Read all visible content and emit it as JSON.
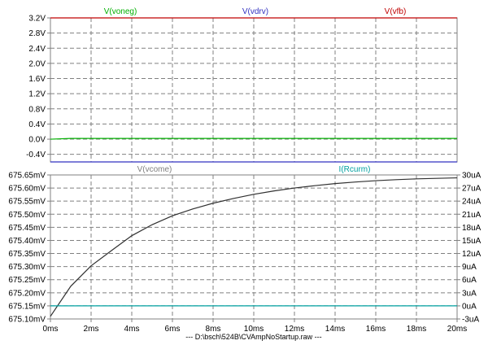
{
  "window": {
    "footer": "---  D:\\bsch\\524B\\CVAmpNoStartup.raw  ---"
  },
  "colors": {
    "vfb": "#c00000",
    "vdrv": "#3030c0",
    "voneg": "#00b000",
    "vcome": "#303030",
    "rcurm": "#00a0a0",
    "grid": "#808080",
    "plot_bg": "#ffffff"
  },
  "chart_data": [
    {
      "type": "line",
      "pane": "top",
      "xlim": [
        0,
        20
      ],
      "x_ticks": [
        "0ms",
        "2ms",
        "4ms",
        "6ms",
        "8ms",
        "10ms",
        "12ms",
        "14ms",
        "16ms",
        "18ms",
        "20ms"
      ],
      "ylim": [
        -0.6,
        3.2
      ],
      "y_ticks": [
        "3.2V",
        "2.8V",
        "2.4V",
        "2.0V",
        "1.6V",
        "1.2V",
        "0.8V",
        "0.4V",
        "0.0V",
        "-0.4V"
      ],
      "grid": true,
      "series": [
        {
          "name": "V(voneg)",
          "color_key": "voneg",
          "x": [
            0,
            1,
            20
          ],
          "y": [
            0.0,
            0.02,
            0.02
          ]
        },
        {
          "name": "V(vdrv)",
          "color_key": "vdrv",
          "x": [
            0,
            20
          ],
          "y": [
            -0.6,
            -0.6
          ]
        },
        {
          "name": "V(vfb)",
          "color_key": "vfb",
          "x": [
            0,
            20
          ],
          "y": [
            3.2,
            3.2
          ]
        }
      ]
    },
    {
      "type": "line",
      "pane": "bottom",
      "xlim": [
        0,
        20
      ],
      "x_ticks": [
        "0ms",
        "2ms",
        "4ms",
        "6ms",
        "8ms",
        "10ms",
        "12ms",
        "14ms",
        "16ms",
        "18ms",
        "20ms"
      ],
      "ylim_left": [
        675.1,
        675.65
      ],
      "y_ticks_left": [
        "675.65mV",
        "675.60mV",
        "675.55mV",
        "675.50mV",
        "675.45mV",
        "675.40mV",
        "675.35mV",
        "675.30mV",
        "675.25mV",
        "675.20mV",
        "675.15mV",
        "675.10mV"
      ],
      "ylim_right": [
        -3,
        30
      ],
      "y_ticks_right": [
        "30uA",
        "27uA",
        "24uA",
        "21uA",
        "18uA",
        "15uA",
        "12uA",
        "9uA",
        "6uA",
        "3uA",
        "0uA",
        "-3uA"
      ],
      "grid": true,
      "series": [
        {
          "name": "V(vcome)",
          "axis": "left",
          "color_key": "vcome",
          "x": [
            0,
            1,
            2,
            3,
            4,
            5,
            6,
            7,
            8,
            9,
            10,
            11,
            12,
            13,
            14,
            15,
            16,
            17,
            18,
            19,
            20
          ],
          "y": [
            675.11,
            675.225,
            675.303,
            675.361,
            675.418,
            675.46,
            675.494,
            675.52,
            675.542,
            675.56,
            675.576,
            675.589,
            675.6,
            675.609,
            675.617,
            675.623,
            675.628,
            675.632,
            675.635,
            675.637,
            675.639
          ]
        },
        {
          "name": "I(Rcurm)",
          "axis": "right",
          "color_key": "rcurm",
          "x": [
            0,
            20
          ],
          "y": [
            0,
            0
          ]
        }
      ]
    }
  ]
}
